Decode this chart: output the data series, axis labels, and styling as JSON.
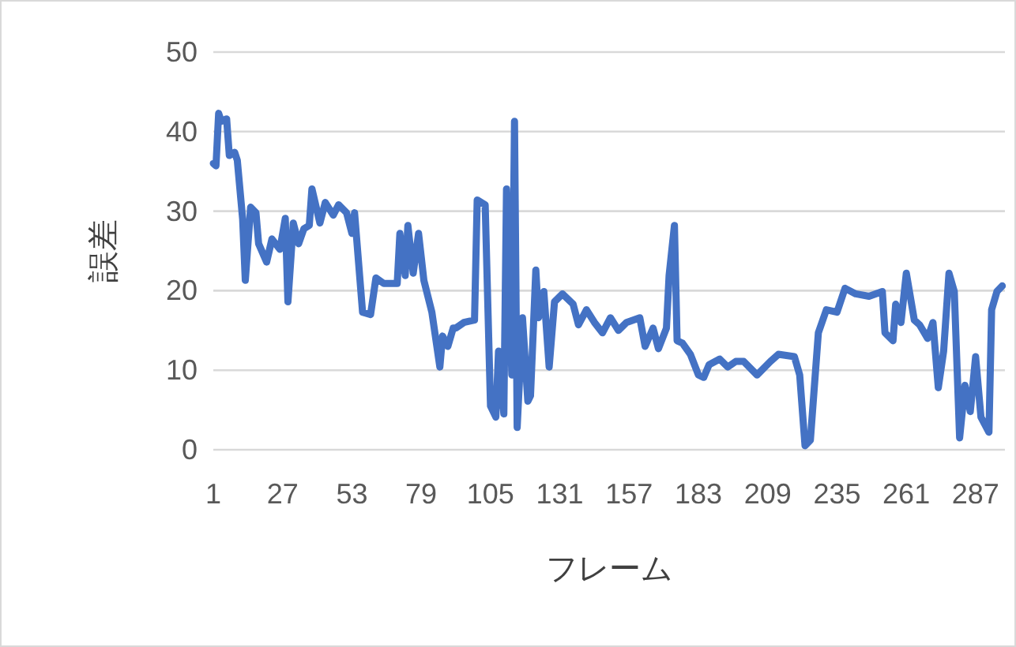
{
  "chart_data": {
    "type": "line",
    "xlabel": "フレーム",
    "ylabel": "誤差",
    "x": [
      1,
      2,
      3,
      4,
      6,
      7,
      9,
      10,
      12,
      13,
      15,
      17,
      18,
      21,
      23,
      26,
      28,
      29,
      31,
      33,
      35,
      37,
      38,
      41,
      43,
      46,
      48,
      51,
      53,
      54,
      57,
      60,
      62,
      65,
      70,
      71,
      73,
      74,
      76,
      78,
      80,
      83,
      86,
      87,
      89,
      91,
      92,
      95,
      99,
      100,
      103,
      105,
      107,
      108,
      110,
      111,
      113,
      114,
      115,
      117,
      119,
      120,
      122,
      123,
      125,
      127,
      129,
      132,
      136,
      138,
      141,
      144,
      147,
      150,
      153,
      156,
      161,
      163,
      166,
      168,
      171,
      172,
      174,
      175,
      177,
      180,
      183,
      185,
      187,
      191,
      194,
      197,
      200,
      205,
      210,
      213,
      219,
      221,
      223,
      225,
      228,
      231,
      235,
      238,
      242,
      247,
      252,
      253,
      256,
      257,
      259,
      261,
      264,
      266,
      269,
      271,
      273,
      275,
      277,
      279,
      281,
      283,
      285,
      287,
      289,
      292,
      293,
      295,
      297
    ],
    "series": [
      {
        "color": "#4472c4",
        "values": [
          36,
          35.7,
          42.3,
          41.3,
          41.6,
          37,
          37.4,
          36.4,
          29,
          21.3,
          30.5,
          29.8,
          25.9,
          23.6,
          26.5,
          25.2,
          29.1,
          18.6,
          28.5,
          25.9,
          27.8,
          28.2,
          32.8,
          28.5,
          31.1,
          29.5,
          30.8,
          29.8,
          27.2,
          29.8,
          17.3,
          17,
          21.6,
          20.9,
          20.9,
          27.2,
          21.9,
          28.2,
          22.2,
          27.2,
          21.3,
          17.3,
          10.4,
          14.3,
          13,
          15.3,
          15.3,
          16,
          16.3,
          31.4,
          30.8,
          5.5,
          4.1,
          12.4,
          4.5,
          32.8,
          9.4,
          41.3,
          2.8,
          16.6,
          6.1,
          6.8,
          22.6,
          16.6,
          19.9,
          10.4,
          18.6,
          19.6,
          18.3,
          15.7,
          17.6,
          16,
          14.7,
          16.6,
          15,
          16,
          16.6,
          13,
          15.3,
          12.7,
          15.3,
          21.9,
          28.2,
          13.7,
          13.4,
          12,
          9.4,
          9.1,
          10.7,
          11.4,
          10.4,
          11.1,
          11.1,
          9.4,
          11.1,
          12,
          11.7,
          9.4,
          0.5,
          1.2,
          14.7,
          17.6,
          17.3,
          20.3,
          19.6,
          19.3,
          19.9,
          14.7,
          13.7,
          18.3,
          16,
          22.2,
          16.3,
          15.7,
          14,
          16,
          7.8,
          12.4,
          22.2,
          19.9,
          1.5,
          8.1,
          4.8,
          11.7,
          4.1,
          2.2,
          17.6,
          19.9,
          20.6
        ]
      }
    ],
    "xlim": [
      1,
      298
    ],
    "xticks": [
      1,
      27,
      53,
      79,
      105,
      131,
      157,
      183,
      209,
      235,
      261,
      287
    ],
    "ylim": [
      0,
      50
    ],
    "yticks": [
      0,
      10,
      20,
      30,
      40,
      50
    ],
    "grid": "y"
  }
}
